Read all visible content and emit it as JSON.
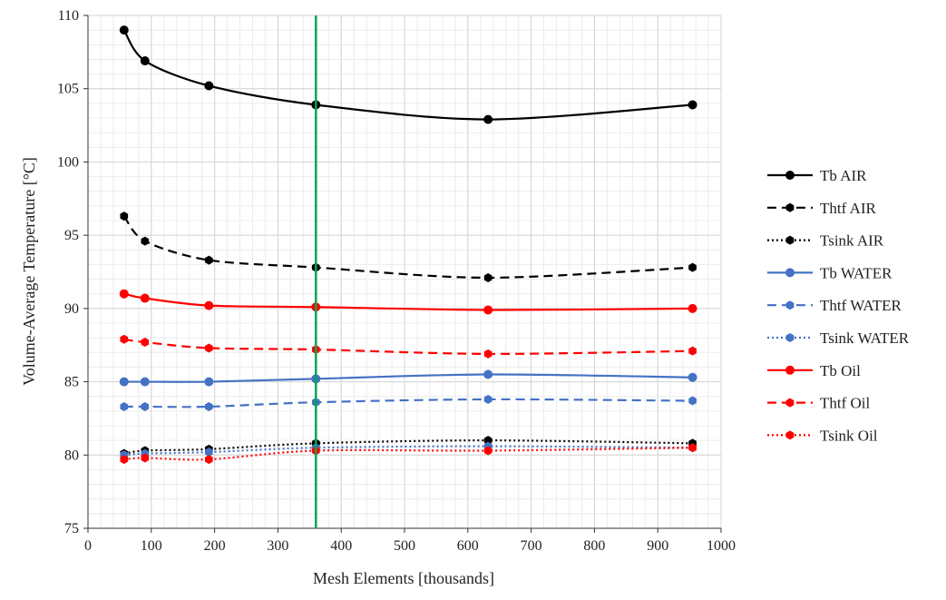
{
  "chart_data": {
    "type": "line",
    "title": "",
    "xlabel": "Mesh Elements [thousands]",
    "ylabel": "Volume-Average Temperature [°C]",
    "xlim": [
      0,
      1000
    ],
    "ylim": [
      75,
      110
    ],
    "xticks": [
      0,
      100,
      200,
      300,
      400,
      500,
      600,
      700,
      800,
      900,
      1000
    ],
    "yticks": [
      75,
      80,
      85,
      90,
      95,
      100,
      105,
      110
    ],
    "grid": true,
    "legend_position": "right",
    "vertical_reference_line": {
      "x": 360,
      "color": "#00a651"
    },
    "x": [
      57,
      90,
      191,
      360,
      632,
      955
    ],
    "series": [
      {
        "name": "Tb AIR",
        "color": "#000000",
        "dash": "solid",
        "marker": "circle",
        "values": [
          109.0,
          106.9,
          105.2,
          103.9,
          102.9,
          103.9
        ]
      },
      {
        "name": "Thtf AIR",
        "color": "#000000",
        "dash": "dashed",
        "marker": "hexagon",
        "values": [
          96.3,
          94.6,
          93.3,
          92.8,
          92.1,
          92.8
        ]
      },
      {
        "name": "Tsink AIR",
        "color": "#000000",
        "dash": "dotted",
        "marker": "hexagon",
        "values": [
          80.1,
          80.3,
          80.4,
          80.8,
          81.0,
          80.8
        ]
      },
      {
        "name": "Tb WATER",
        "color": "#4472c4",
        "dash": "solid",
        "marker": "circle",
        "values": [
          85.0,
          85.0,
          85.0,
          85.2,
          85.5,
          85.3
        ]
      },
      {
        "name": "Thtf WATER",
        "color": "#4472c4",
        "dash": "dashed",
        "marker": "hexagon",
        "values": [
          83.3,
          83.3,
          83.3,
          83.6,
          83.8,
          83.7
        ]
      },
      {
        "name": "Tsink WATER",
        "color": "#4472c4",
        "dash": "dotted",
        "marker": "hexagon",
        "values": [
          80.0,
          80.1,
          80.2,
          80.5,
          80.6,
          80.5
        ]
      },
      {
        "name": "Tb Oil",
        "color": "#ff0000",
        "dash": "solid",
        "marker": "circle",
        "values": [
          91.0,
          90.7,
          90.2,
          90.1,
          89.9,
          90.0
        ]
      },
      {
        "name": "Thtf Oil",
        "color": "#ff0000",
        "dash": "dashed",
        "marker": "hexagon",
        "values": [
          87.9,
          87.7,
          87.3,
          87.2,
          86.9,
          87.1
        ]
      },
      {
        "name": "Tsink Oil",
        "color": "#ff0000",
        "dash": "dotted",
        "marker": "hexagon",
        "values": [
          79.7,
          79.8,
          79.7,
          80.3,
          80.3,
          80.5
        ]
      }
    ]
  }
}
